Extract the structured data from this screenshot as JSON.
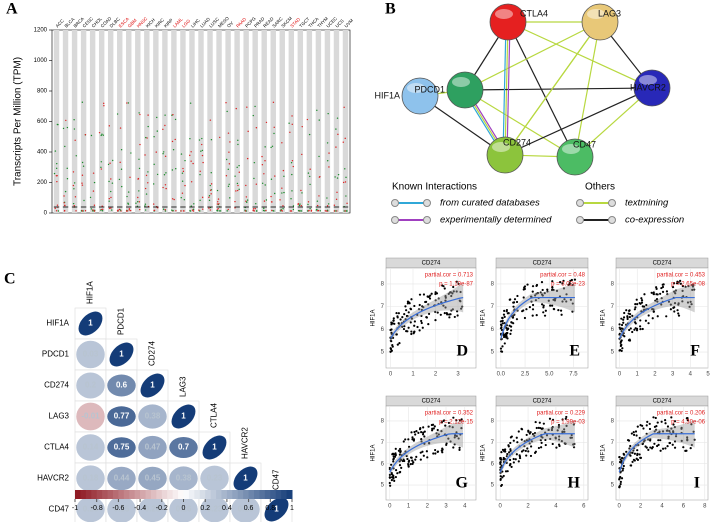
{
  "panel_labels": [
    "A",
    "B",
    "C"
  ],
  "expression": {
    "type": "dot",
    "ylabel": "Transcripts Per Million (TPM)",
    "ylim": [
      0,
      1200
    ],
    "yticks": [
      0,
      200,
      400,
      600,
      800,
      1000,
      1200
    ],
    "categories": [
      "ACC",
      "BLCA",
      "BRCA",
      "CESC",
      "CHOL",
      "COAD",
      "DLBC",
      "ESCA",
      "GBM",
      "HNSC",
      "KICH",
      "KIRC",
      "KIRP",
      "LAML",
      "LGG",
      "LIHC",
      "LUAD",
      "LUSC",
      "MESO",
      "OV",
      "PAAD",
      "PCPG",
      "PRAD",
      "READ",
      "SARC",
      "SKCM",
      "STAD",
      "TGCT",
      "THCA",
      "THYM",
      "UCEC",
      "UCS",
      "UVM"
    ],
    "category_colors": [
      "#000",
      "#000",
      "#000",
      "#000",
      "#000",
      "#000",
      "#000",
      "#d00",
      "#d00",
      "#d00",
      "#000",
      "#000",
      "#000",
      "#d00",
      "#d00",
      "#000",
      "#000",
      "#000",
      "#000",
      "#000",
      "#d00",
      "#000",
      "#000",
      "#000",
      "#000",
      "#000",
      "#d00",
      "#000",
      "#000",
      "#000",
      "#000",
      "#000",
      "#000"
    ]
  },
  "network": {
    "nodes": [
      {
        "label": "CTLA4",
        "color": "#e52020"
      },
      {
        "label": "LAG3",
        "color": "#e8c878"
      },
      {
        "label": "HIF1A",
        "color": "#8ec2ec"
      },
      {
        "label": "PDCD1",
        "color": "#2ea060"
      },
      {
        "label": "HAVCR2",
        "color": "#2828b8"
      },
      {
        "label": "CD274",
        "color": "#8cc43c"
      },
      {
        "label": "CD47",
        "color": "#4cbc64"
      }
    ],
    "legend": {
      "known_title": "Known Interactions",
      "curated": "from curated databases",
      "experimental": "experimentally determined",
      "others_title": "Others",
      "textmining": "textmining",
      "coexpression": "co-expression"
    }
  },
  "correlation": {
    "genes": [
      "HIF1A",
      "PDCD1",
      "CD274",
      "LAG3",
      "CTLA4",
      "HAVCR2",
      "CD47"
    ],
    "matrix": [
      [
        1
      ],
      [
        0.03,
        1
      ],
      [
        0.2,
        0.6,
        1
      ],
      [
        -0.01,
        0.77,
        0.38,
        1
      ],
      [
        0.14,
        0.75,
        0.47,
        0.7,
        1
      ],
      [
        0.18,
        0.44,
        0.45,
        0.38,
        0.23,
        1
      ],
      [
        0.25,
        0.15,
        0.28,
        0.16,
        0.23,
        0.15,
        1
      ]
    ],
    "colorbar_ticks": [
      -1,
      -0.8,
      -0.6,
      -0.4,
      -0.2,
      0,
      0.2,
      0.4,
      0.6,
      0.8,
      1
    ]
  },
  "scatter": [
    {
      "letter": "D",
      "title": "CD274",
      "ylabel": "HIF1A",
      "cor_label": "partial.cor = 0.713",
      "p_label": "p = 1.10e-87",
      "xlim": [
        -0.2,
        3.8
      ],
      "xticks": [
        0,
        1,
        2,
        3
      ],
      "ylim": [
        4.3,
        8.7
      ],
      "yticks": [
        5,
        6,
        7,
        8
      ]
    },
    {
      "letter": "E",
      "title": "CD274",
      "ylabel": "HIF1A",
      "cor_label": "partial.cor = 0.48",
      "p_label": "p = 3.02e-23",
      "xlim": [
        -0.5,
        9
      ],
      "xticks": [
        {
          "value": 0,
          "label": "0.0"
        },
        {
          "value": 2.5,
          "label": "2.5"
        },
        {
          "value": 5,
          "label": "5.0"
        },
        {
          "value": 7.5,
          "label": "7.5"
        }
      ],
      "ylim": [
        4.3,
        8.7
      ],
      "yticks": [
        5,
        6,
        7,
        8
      ]
    },
    {
      "letter": "F",
      "title": "CD274",
      "ylabel": "HIF1A",
      "cor_label": "partial.cor = 0.453",
      "p_label": "p = 2.65e-08",
      "xlim": [
        -0.2,
        5
      ],
      "xticks": [
        0,
        1,
        2,
        3,
        4,
        5
      ],
      "ylim": [
        4.3,
        8.7
      ],
      "yticks": [
        5,
        6,
        7,
        8
      ]
    },
    {
      "letter": "G",
      "title": "CD274",
      "ylabel": "HIF1A",
      "cor_label": "partial.cor = 0.352",
      "p_label": "p = 2.12e-15",
      "xlim": [
        -0.2,
        4.6
      ],
      "xticks": [
        0,
        1,
        2,
        3,
        4
      ],
      "ylim": [
        4.3,
        8.7
      ],
      "yticks": [
        5,
        6,
        7,
        8
      ]
    },
    {
      "letter": "H",
      "title": "CD274",
      "ylabel": "HIF1A",
      "cor_label": "partial.cor = 0.229",
      "p_label": "p = 1.99e-03",
      "xlim": [
        -0.3,
        6.3
      ],
      "xticks": [
        0,
        2,
        4,
        6
      ],
      "ylim": [
        4.3,
        8.7
      ],
      "yticks": [
        5,
        6,
        7,
        8
      ]
    },
    {
      "letter": "I",
      "title": "CD274",
      "ylabel": "HIF1A",
      "cor_label": "partial.cor = 0.206",
      "p_label": "p = 4.30e-06",
      "xlim": [
        -0.3,
        8.3
      ],
      "xticks": [
        0,
        2,
        4,
        6,
        8
      ],
      "ylim": [
        4.3,
        8.7
      ],
      "yticks": [
        5,
        6,
        7,
        8
      ]
    }
  ]
}
